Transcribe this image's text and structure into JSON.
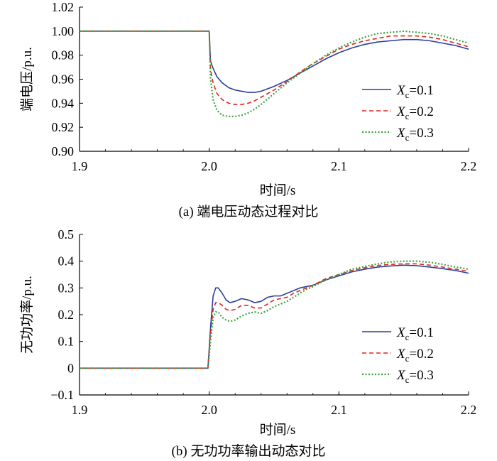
{
  "chart_data": [
    {
      "type": "line",
      "caption": "(a)  端电压动态过程对比",
      "xlabel": "时间/s",
      "ylabel": "端电压/p.u.",
      "xlim": [
        1.9,
        2.2
      ],
      "ylim": [
        0.9,
        1.02
      ],
      "xticks": [
        "1.9",
        "2.0",
        "2.1",
        "2.2"
      ],
      "yticks": [
        "0.90",
        "0.92",
        "0.94",
        "0.96",
        "0.98",
        "1.00",
        "1.02"
      ],
      "legend_position": "right-center",
      "series": [
        {
          "name": "Xc=0.1",
          "symbol": "X",
          "sub": "c",
          "value_label": "=0.1",
          "color": "#2b3f9e",
          "dash": "solid",
          "x": [
            1.9,
            2.0,
            2.001,
            2.003,
            2.006,
            2.01,
            2.015,
            2.02,
            2.025,
            2.03,
            2.035,
            2.04,
            2.05,
            2.06,
            2.07,
            2.08,
            2.09,
            2.1,
            2.11,
            2.12,
            2.13,
            2.14,
            2.15,
            2.16,
            2.17,
            2.18,
            2.19,
            2.2
          ],
          "y": [
            1.0,
            1.0,
            0.975,
            0.969,
            0.962,
            0.957,
            0.953,
            0.951,
            0.95,
            0.949,
            0.949,
            0.95,
            0.954,
            0.959,
            0.965,
            0.971,
            0.977,
            0.982,
            0.986,
            0.989,
            0.991,
            0.992,
            0.993,
            0.993,
            0.992,
            0.99,
            0.988,
            0.985
          ]
        },
        {
          "name": "Xc=0.2",
          "symbol": "X",
          "sub": "c",
          "value_label": "=0.2",
          "color": "#e2231a",
          "dash": "6,4",
          "x": [
            1.9,
            2.0,
            2.001,
            2.003,
            2.006,
            2.01,
            2.015,
            2.02,
            2.025,
            2.03,
            2.035,
            2.04,
            2.05,
            2.06,
            2.07,
            2.08,
            2.09,
            2.1,
            2.11,
            2.12,
            2.13,
            2.14,
            2.15,
            2.16,
            2.17,
            2.18,
            2.19,
            2.2
          ],
          "y": [
            1.0,
            1.0,
            0.968,
            0.957,
            0.948,
            0.943,
            0.94,
            0.939,
            0.939,
            0.94,
            0.942,
            0.945,
            0.951,
            0.958,
            0.966,
            0.973,
            0.979,
            0.985,
            0.989,
            0.992,
            0.994,
            0.996,
            0.996,
            0.996,
            0.995,
            0.993,
            0.99,
            0.987
          ]
        },
        {
          "name": "Xc=0.3",
          "symbol": "X",
          "sub": "c",
          "value_label": "=0.3",
          "color": "#3aa23c",
          "dash": "2,2.5",
          "x": [
            1.9,
            2.0,
            2.001,
            2.003,
            2.006,
            2.01,
            2.015,
            2.02,
            2.025,
            2.03,
            2.035,
            2.04,
            2.05,
            2.06,
            2.07,
            2.08,
            2.09,
            2.1,
            2.11,
            2.12,
            2.13,
            2.14,
            2.15,
            2.16,
            2.17,
            2.18,
            2.19,
            2.2
          ],
          "y": [
            1.0,
            1.0,
            0.96,
            0.943,
            0.934,
            0.93,
            0.929,
            0.929,
            0.93,
            0.932,
            0.935,
            0.939,
            0.948,
            0.957,
            0.965,
            0.973,
            0.98,
            0.986,
            0.991,
            0.995,
            0.998,
            0.999,
            1.0,
            0.999,
            0.998,
            0.996,
            0.993,
            0.99
          ]
        }
      ]
    },
    {
      "type": "line",
      "caption": "(b)  无功功率输出动态对比",
      "xlabel": "时间/s",
      "ylabel": "无功功率/p.u.",
      "xlim": [
        1.9,
        2.2
      ],
      "ylim": [
        -0.1,
        0.5
      ],
      "xticks": [
        "1.9",
        "2.0",
        "2.1",
        "2.2"
      ],
      "yticks": [
        "−0.1",
        "0",
        "0.1",
        "0.2",
        "0.3",
        "0.4",
        "0.5"
      ],
      "legend_position": "right-center",
      "series": [
        {
          "name": "Xc=0.1",
          "symbol": "X",
          "sub": "c",
          "value_label": "=0.1",
          "color": "#2b3f9e",
          "dash": "solid",
          "x": [
            1.9,
            1.999,
            2.001,
            2.003,
            2.005,
            2.007,
            2.01,
            2.013,
            2.016,
            2.02,
            2.025,
            2.03,
            2.035,
            2.04,
            2.045,
            2.05,
            2.055,
            2.06,
            2.065,
            2.07,
            2.075,
            2.08,
            2.09,
            2.1,
            2.11,
            2.12,
            2.13,
            2.14,
            2.15,
            2.16,
            2.17,
            2.18,
            2.19,
            2.2
          ],
          "y": [
            0.0,
            0.0,
            0.15,
            0.27,
            0.3,
            0.3,
            0.28,
            0.255,
            0.245,
            0.25,
            0.26,
            0.255,
            0.245,
            0.25,
            0.265,
            0.27,
            0.27,
            0.28,
            0.29,
            0.3,
            0.305,
            0.31,
            0.33,
            0.345,
            0.36,
            0.37,
            0.378,
            0.382,
            0.385,
            0.383,
            0.378,
            0.372,
            0.365,
            0.355
          ]
        },
        {
          "name": "Xc=0.2",
          "symbol": "X",
          "sub": "c",
          "value_label": "=0.2",
          "color": "#e2231a",
          "dash": "6,4",
          "x": [
            1.9,
            1.999,
            2.001,
            2.003,
            2.005,
            2.007,
            2.01,
            2.013,
            2.016,
            2.02,
            2.025,
            2.03,
            2.035,
            2.04,
            2.045,
            2.05,
            2.055,
            2.06,
            2.065,
            2.07,
            2.075,
            2.08,
            2.09,
            2.1,
            2.11,
            2.12,
            2.13,
            2.14,
            2.15,
            2.16,
            2.17,
            2.18,
            2.19,
            2.2
          ],
          "y": [
            0.0,
            0.0,
            0.13,
            0.22,
            0.245,
            0.245,
            0.235,
            0.22,
            0.215,
            0.22,
            0.235,
            0.235,
            0.225,
            0.225,
            0.24,
            0.255,
            0.26,
            0.265,
            0.28,
            0.29,
            0.3,
            0.31,
            0.335,
            0.35,
            0.365,
            0.375,
            0.384,
            0.388,
            0.39,
            0.39,
            0.385,
            0.378,
            0.37,
            0.362
          ]
        },
        {
          "name": "Xc=0.3",
          "symbol": "X",
          "sub": "c",
          "value_label": "=0.3",
          "color": "#3aa23c",
          "dash": "2,2.5",
          "x": [
            1.9,
            1.999,
            2.001,
            2.003,
            2.005,
            2.007,
            2.01,
            2.013,
            2.016,
            2.02,
            2.025,
            2.03,
            2.035,
            2.04,
            2.045,
            2.05,
            2.055,
            2.06,
            2.065,
            2.07,
            2.075,
            2.08,
            2.09,
            2.1,
            2.11,
            2.12,
            2.13,
            2.14,
            2.15,
            2.16,
            2.17,
            2.18,
            2.19,
            2.2
          ],
          "y": [
            0.0,
            0.0,
            0.1,
            0.19,
            0.21,
            0.21,
            0.19,
            0.18,
            0.175,
            0.18,
            0.195,
            0.205,
            0.21,
            0.205,
            0.215,
            0.23,
            0.24,
            0.25,
            0.265,
            0.28,
            0.295,
            0.305,
            0.33,
            0.35,
            0.37,
            0.38,
            0.39,
            0.397,
            0.4,
            0.4,
            0.396,
            0.388,
            0.378,
            0.37
          ]
        }
      ]
    }
  ]
}
